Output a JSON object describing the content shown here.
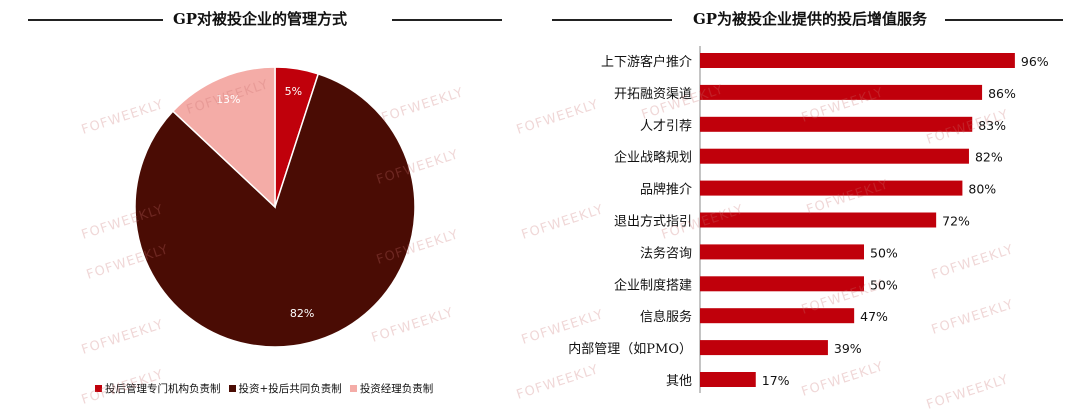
{
  "watermark": "FOFWEEKLY",
  "chart_data": [
    {
      "type": "pie",
      "title": "GP对被投企业的管理方式",
      "slices": [
        {
          "label": "投后管理专门机构负责制",
          "value": 5,
          "display": "5%",
          "color": "#c0000b"
        },
        {
          "label": "投资+投后共同负责制",
          "value": 82,
          "display": "82%",
          "color": "#4a0c04"
        },
        {
          "label": "投资经理负责制",
          "value": 13,
          "display": "13%",
          "color": "#f4aca7"
        }
      ],
      "legend_position": "bottom"
    },
    {
      "type": "bar",
      "orientation": "horizontal",
      "title": "GP为被投企业提供的投后增值服务",
      "categories": [
        "上下游客户推介",
        "开拓融资渠道",
        "人才引荐",
        "企业战略规划",
        "品牌推介",
        "退出方式指引",
        "法务咨询",
        "企业制度搭建",
        "信息服务",
        "内部管理（如PMO）",
        "其他"
      ],
      "values": [
        96,
        86,
        83,
        82,
        80,
        72,
        50,
        50,
        47,
        39,
        17
      ],
      "value_labels": [
        "96%",
        "86%",
        "83%",
        "82%",
        "80%",
        "72%",
        "50%",
        "50%",
        "47%",
        "39%",
        "17%"
      ],
      "color": "#c0000b",
      "xlim": [
        0,
        100
      ]
    }
  ]
}
